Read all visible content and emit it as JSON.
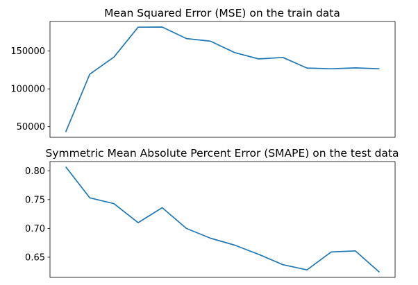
{
  "chart_data": [
    {
      "type": "line",
      "title": "Mean Squared Error (MSE) on the train data",
      "xlabel": "",
      "ylabel": "",
      "x": [
        0,
        1,
        2,
        3,
        4,
        5,
        6,
        7,
        8,
        9,
        10,
        11,
        12,
        13
      ],
      "series": [
        {
          "values": [
            43000,
            119500,
            142000,
            181500,
            181700,
            166500,
            163000,
            148000,
            139500,
            141500,
            127500,
            126500,
            127700,
            126500
          ],
          "color": "#1f77b4"
        }
      ],
      "xlim": [
        -0.65,
        13.65
      ],
      "ylim": [
        36000,
        189000
      ],
      "yticks": [
        50000,
        100000,
        150000
      ],
      "ytick_labels": [
        "50000",
        "100000",
        "150000"
      ],
      "grid": false,
      "legend": "none"
    },
    {
      "type": "line",
      "title": "Symmetric Mean Absolute Percent Error (SMAPE) on the test data",
      "xlabel": "",
      "ylabel": "",
      "x": [
        0,
        1,
        2,
        3,
        4,
        5,
        6,
        7,
        8,
        9,
        10,
        11,
        12,
        13
      ],
      "series": [
        {
          "values": [
            0.807,
            0.753,
            0.743,
            0.71,
            0.736,
            0.7,
            0.683,
            0.671,
            0.655,
            0.637,
            0.628,
            0.659,
            0.661,
            0.624
          ],
          "color": "#1f77b4"
        }
      ],
      "xlim": [
        -0.65,
        13.65
      ],
      "ylim": [
        0.615,
        0.816
      ],
      "yticks": [
        0.65,
        0.7,
        0.75,
        0.8
      ],
      "ytick_labels": [
        "0.65",
        "0.70",
        "0.75",
        "0.80"
      ],
      "grid": false,
      "legend": "none"
    }
  ]
}
